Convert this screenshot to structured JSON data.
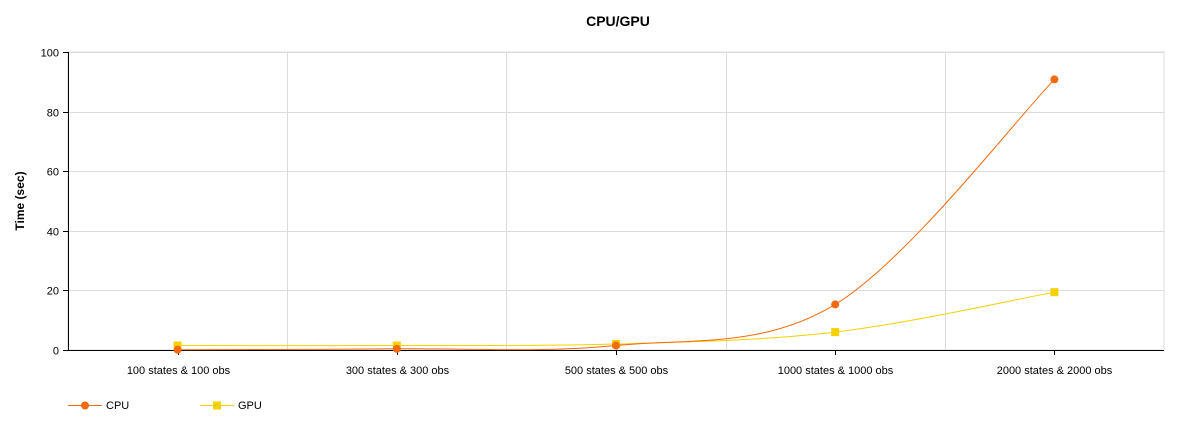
{
  "chart_data": {
    "type": "line",
    "title": "CPU/GPU",
    "xlabel": "",
    "ylabel": "Time (sec)",
    "categories": [
      "100 states & 100 obs",
      "300 states & 300 obs",
      "500 states & 500 obs",
      "1000 states & 1000 obs",
      "2000 states & 2000 obs"
    ],
    "ylim": [
      0,
      100
    ],
    "yticks": [
      0,
      20,
      40,
      60,
      80,
      100
    ],
    "grid": true,
    "smooth": true,
    "legend_position": "bottom-left",
    "series": [
      {
        "name": "CPU",
        "color": "#f26b0f",
        "marker": "circle",
        "values": [
          0.1,
          0.4,
          1.5,
          15.3,
          90.8
        ]
      },
      {
        "name": "GPU",
        "color": "#f7d000",
        "marker": "square",
        "values": [
          1.5,
          1.5,
          2.0,
          6.0,
          19.4
        ]
      }
    ]
  }
}
